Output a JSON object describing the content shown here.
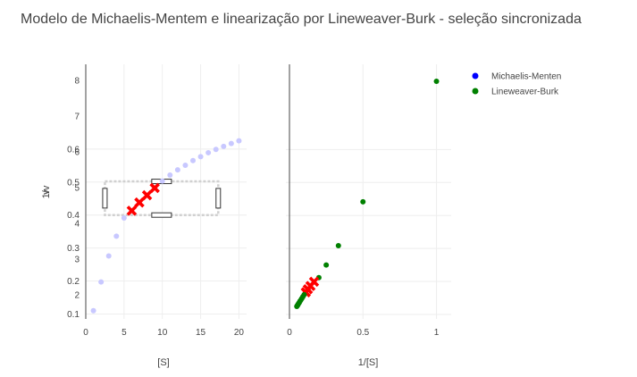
{
  "chart_data": {
    "title": "Modelo de Michaelis-Mentem e linearização por Lineweaver-Burk - seleção sincronizada",
    "legend": {
      "placement": "top-right",
      "items": [
        {
          "name": "Michaelis-Menten",
          "color": "#0000ff"
        },
        {
          "name": "Lineweaver-Burk",
          "color": "#008000"
        }
      ]
    },
    "y_label": "1/v",
    "y_label_overlay": "v",
    "y_ticks_overlay": [
      "2",
      "3",
      "4",
      "5",
      "6",
      "7",
      "8"
    ],
    "colors": {
      "selected": "#ff0000",
      "unselected_mm": "#c8c8ff",
      "lb": "#008000"
    },
    "panels": [
      {
        "type": "scatter",
        "series_name": "Michaelis-Menten",
        "xlabel": "[S]",
        "xlim": [
          0,
          21
        ],
        "ylim": [
          0.085,
          0.857
        ],
        "x_ticks": [
          0,
          5,
          10,
          15,
          20
        ],
        "y_ticks": [
          0.1,
          0.2,
          0.3,
          0.4,
          0.5,
          0.6
        ],
        "selection_box": {
          "x": [
            2.5,
            17.3
          ],
          "y": [
            0.4,
            0.502
          ]
        },
        "x": [
          1,
          2,
          3,
          4,
          5,
          6,
          7,
          8,
          9,
          10,
          11,
          12,
          13,
          14,
          15,
          16,
          17,
          18,
          19,
          20
        ],
        "y": [
          0.11,
          0.197,
          0.276,
          0.336,
          0.391,
          0.413,
          0.438,
          0.46,
          0.482,
          0.503,
          0.521,
          0.537,
          0.551,
          0.565,
          0.577,
          0.589,
          0.599,
          0.608,
          0.617,
          0.625
        ],
        "selected": [
          false,
          false,
          false,
          false,
          false,
          true,
          true,
          true,
          true,
          false,
          false,
          false,
          false,
          false,
          false,
          false,
          false,
          false,
          false,
          false
        ]
      },
      {
        "type": "scatter",
        "series_name": "Lineweaver-Burk",
        "xlabel": "1/[S]",
        "xlim": [
          0,
          1.1
        ],
        "x_ticks": [
          0,
          0.5,
          1
        ],
        "x": [
          1,
          0.5,
          0.333,
          0.25,
          0.2,
          0.167,
          0.143,
          0.125,
          0.111,
          0.1,
          0.0909,
          0.0833,
          0.0769,
          0.0714,
          0.0667,
          0.0625,
          0.0588,
          0.0556,
          0.0526,
          0.05
        ],
        "y": [
          9.09,
          5.08,
          3.62,
          2.98,
          2.56,
          2.42,
          2.28,
          2.17,
          2.07,
          1.99,
          1.92,
          1.86,
          1.81,
          1.77,
          1.73,
          1.7,
          1.67,
          1.64,
          1.62,
          1.6
        ],
        "selected": [
          false,
          false,
          false,
          false,
          false,
          true,
          true,
          true,
          true,
          false,
          false,
          false,
          false,
          false,
          false,
          false,
          false,
          false,
          false,
          false
        ]
      }
    ]
  }
}
